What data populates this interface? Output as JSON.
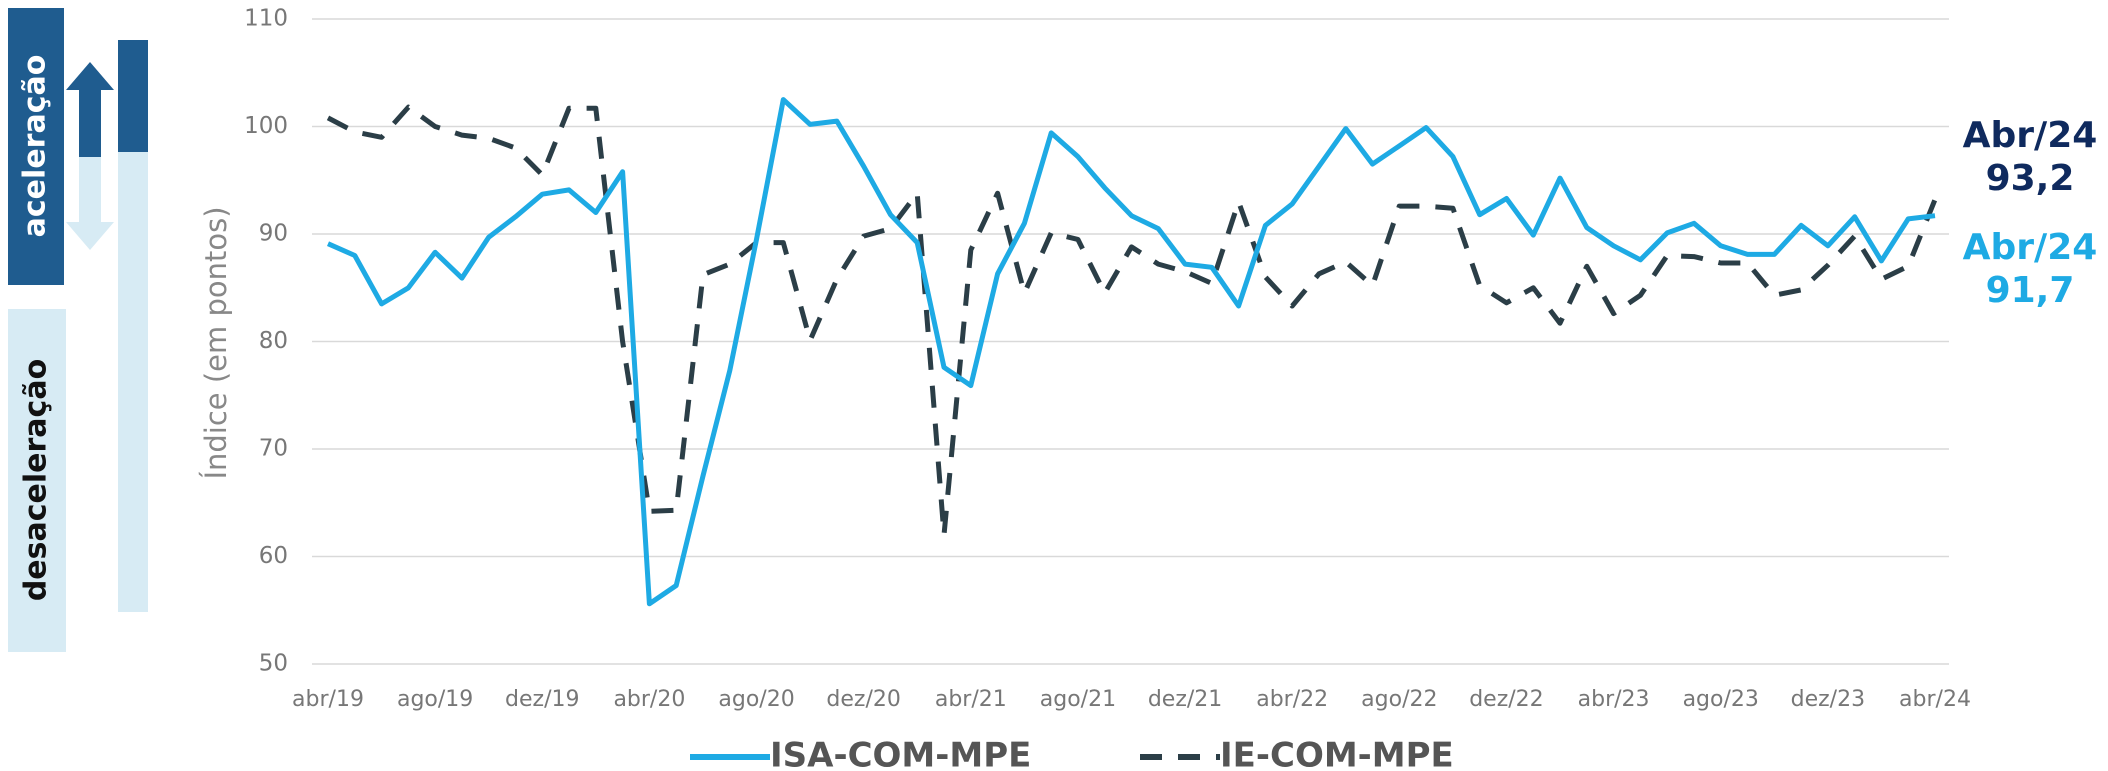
{
  "chart_data": {
    "type": "line",
    "ylabel": "Índice (em pontos)",
    "categories": [
      "abr/19",
      null,
      null,
      null,
      "ago/19",
      null,
      null,
      null,
      "dez/19",
      null,
      null,
      null,
      "abr/20",
      null,
      null,
      null,
      "ago/20",
      null,
      null,
      null,
      "dez/20",
      null,
      null,
      null,
      "abr/21",
      null,
      null,
      null,
      "ago/21",
      null,
      null,
      null,
      "dez/21",
      null,
      null,
      null,
      "abr/22",
      null,
      null,
      null,
      "ago/22",
      null,
      null,
      null,
      "dez/22",
      null,
      null,
      null,
      "abr/23",
      null,
      null,
      null,
      "ago/23",
      null,
      null,
      null,
      "dez/23",
      null,
      null,
      null,
      "abr/24"
    ],
    "series": [
      {
        "name": "ISA-COM-MPE",
        "color": "#1eaae4",
        "style": "solid",
        "values": [
          89.1,
          88,
          83.5,
          85,
          88.3,
          85.9,
          89.7,
          91.6,
          93.7,
          94.1,
          92,
          95.8,
          55.6,
          57.3,
          67.5,
          77.3,
          89.5,
          102.5,
          100.2,
          100.5,
          96.3,
          91.8,
          89.2,
          77.6,
          75.9,
          86.3,
          91,
          99.4,
          97.2,
          94.3,
          91.7,
          90.5,
          87.2,
          86.9,
          83.3,
          90.8,
          92.8,
          96.3,
          99.8,
          96.5,
          98.2,
          99.9,
          97.2,
          91.8,
          93.3,
          89.9,
          95.2,
          90.6,
          88.9,
          87.6,
          90.1,
          91,
          88.9,
          88.1,
          88.1,
          90.8,
          88.9,
          91.6,
          87.5,
          91.4,
          91.7
        ]
      },
      {
        "name": "IE-COM-MPE",
        "color": "#2b3e47",
        "style": "dashed",
        "values": [
          100.8,
          99.5,
          99,
          101.8,
          100,
          99.2,
          98.9,
          98,
          95.5,
          101.7,
          101.7,
          80,
          64.2,
          64.3,
          86.2,
          87.2,
          89.2,
          89.2,
          80.1,
          85.8,
          89.8,
          90.5,
          93.8,
          62,
          88.5,
          93.8,
          84.5,
          90.1,
          89.5,
          84.5,
          88.8,
          87.2,
          86.5,
          85.4,
          93,
          86,
          83.3,
          86.3,
          87.4,
          85.2,
          92.6,
          92.6,
          92.4,
          85.2,
          83.6,
          85,
          81.7,
          87,
          82.6,
          84.3,
          88,
          87.9,
          87.3,
          87.3,
          84.3,
          84.8,
          87.1,
          89.8,
          85.8,
          87,
          93.2
        ]
      }
    ],
    "ylim": [
      50,
      110
    ],
    "yticks": [
      50,
      60,
      70,
      80,
      90,
      100,
      110
    ],
    "grid": true,
    "annotations": [
      {
        "text": [
          "Abr/24",
          "93,2"
        ],
        "color": "#0f2a5e"
      },
      {
        "text": [
          "Abr/24",
          "91,7"
        ],
        "color": "#1eaae4"
      }
    ],
    "side_labels": [
      "aceleração",
      "desaceleração"
    ],
    "legend": "bottom"
  }
}
